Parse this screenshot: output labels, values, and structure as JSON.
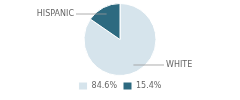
{
  "chart_data": {
    "type": "pie",
    "categories": [
      "84.6%",
      "15.4%"
    ],
    "values": [
      84.6,
      15.4
    ],
    "colors": [
      "#d6e4ec",
      "#2d6a80"
    ],
    "annotations": [
      "WHITE",
      "HISPANIC"
    ],
    "legend": "bottom"
  }
}
